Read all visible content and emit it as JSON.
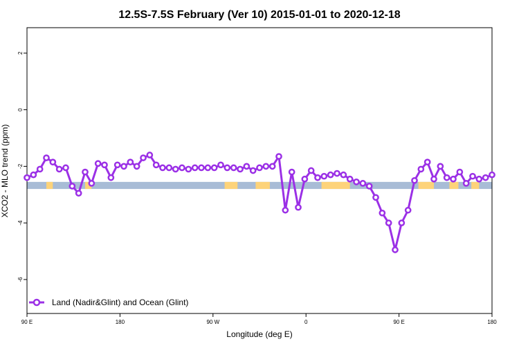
{
  "chart_data": {
    "type": "line",
    "title": "12.5S-7.5S February (Ver 10)   2015-01-01 to 2020-12-18",
    "xlabel": "Longitude (deg E)",
    "ylabel": "XCO2 - MLO trend (ppm)",
    "xlim": [
      0,
      360
    ],
    "ylim": [
      -7.2,
      2.9
    ],
    "x_ticks": [
      {
        "pos": 0,
        "label": "90 E"
      },
      {
        "pos": 72,
        "label": "180"
      },
      {
        "pos": 144,
        "label": "90 W"
      },
      {
        "pos": 216,
        "label": "0"
      },
      {
        "pos": 288,
        "label": "90 E"
      },
      {
        "pos": 360,
        "label": "180"
      }
    ],
    "y_ticks": [
      2,
      0,
      -2,
      -4,
      -6
    ],
    "grid": false,
    "legend_position": "bottom-left",
    "colors": {
      "series": "#9b30e6",
      "ocean_band": "#a8bcd6",
      "land_band": "#fdd37a"
    },
    "band": {
      "y_range": [
        -2.55,
        -2.8
      ],
      "land_segments": [
        [
          15,
          20
        ],
        [
          45,
          50
        ],
        [
          153,
          163
        ],
        [
          177,
          188
        ],
        [
          228,
          250
        ],
        [
          303,
          315
        ],
        [
          327,
          334
        ],
        [
          344,
          350
        ]
      ]
    },
    "series": [
      {
        "name": "Land (Nadir&Glint) and Ocean (Glint)",
        "x": [
          0,
          5,
          10,
          15,
          20,
          25,
          30,
          35,
          40,
          45,
          50,
          55,
          60,
          65,
          70,
          75,
          80,
          85,
          90,
          95,
          100,
          105,
          110,
          115,
          120,
          125,
          130,
          135,
          140,
          145,
          150,
          155,
          160,
          165,
          170,
          175,
          180,
          185,
          190,
          195,
          200,
          205,
          210,
          215,
          220,
          225,
          230,
          235,
          240,
          245,
          250,
          255,
          260,
          265,
          270,
          275,
          280,
          285,
          290,
          295,
          300,
          305,
          310,
          315,
          320,
          325,
          330,
          335,
          340,
          345,
          350,
          355,
          360
        ],
        "y": [
          -2.4,
          -2.3,
          -2.1,
          -1.7,
          -1.85,
          -2.1,
          -2.05,
          -2.7,
          -2.95,
          -2.2,
          -2.6,
          -1.9,
          -1.95,
          -2.4,
          -1.95,
          -2.0,
          -1.85,
          -2.0,
          -1.7,
          -1.6,
          -1.95,
          -2.05,
          -2.05,
          -2.1,
          -2.05,
          -2.1,
          -2.05,
          -2.05,
          -2.05,
          -2.05,
          -1.95,
          -2.05,
          -2.05,
          -2.1,
          -2.0,
          -2.15,
          -2.05,
          -2.0,
          -2.0,
          -1.65,
          -3.55,
          -2.2,
          -3.45,
          -2.45,
          -2.15,
          -2.4,
          -2.35,
          -2.3,
          -2.25,
          -2.3,
          -2.45,
          -2.55,
          -2.6,
          -2.7,
          -3.1,
          -3.65,
          -4.0,
          -4.95,
          -4.0,
          -3.55,
          -2.5,
          -2.1,
          -1.85,
          -2.45,
          -2.0,
          -2.4,
          -2.45,
          -2.2,
          -2.6,
          -2.35,
          -2.45,
          -2.4,
          -2.3
        ]
      }
    ]
  }
}
